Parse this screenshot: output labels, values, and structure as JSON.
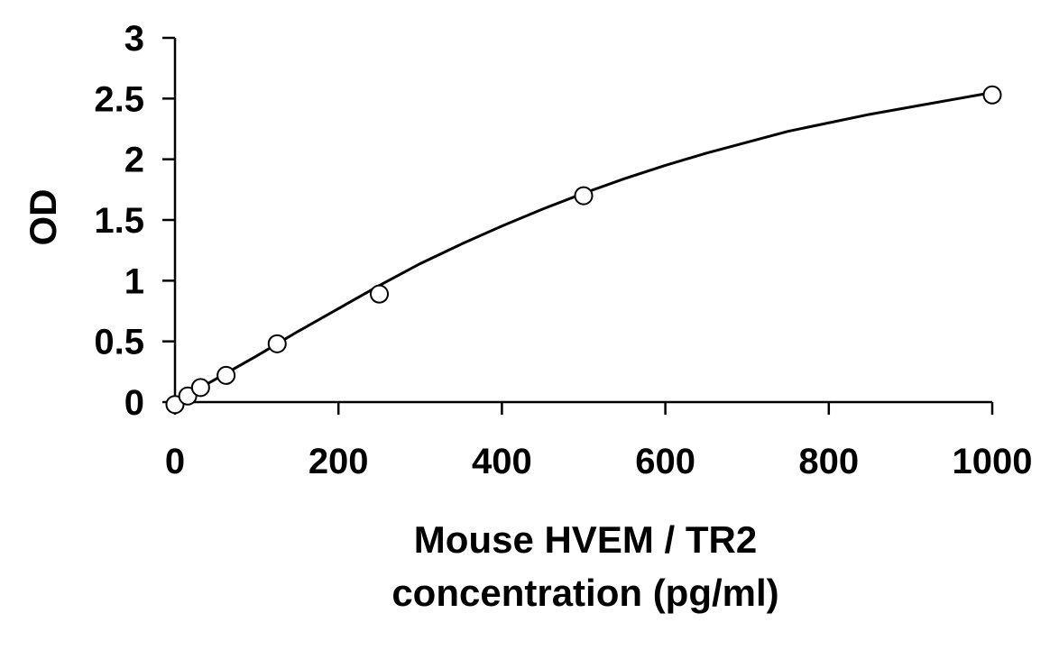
{
  "chart_data": {
    "type": "scatter",
    "title": "",
    "xlabel_lines": [
      "Mouse HVEM / TR2",
      "concentration (pg/ml)"
    ],
    "ylabel": "OD",
    "xlim": [
      0,
      1000
    ],
    "ylim": [
      0,
      3
    ],
    "xticks": [
      0,
      200,
      400,
      600,
      800,
      1000
    ],
    "yticks": [
      0,
      0.5,
      1,
      1.5,
      2,
      2.5,
      3
    ],
    "ytick_labels": [
      "0",
      "0.5",
      "1",
      "1.5",
      "2",
      "2.5",
      "3"
    ],
    "xtick_labels": [
      "0",
      "200",
      "400",
      "600",
      "800",
      "1000"
    ],
    "grid": false,
    "legend": "none",
    "series": [
      {
        "marker": "open-circle",
        "x": [
          0,
          15.6,
          31.3,
          62.5,
          125,
          250,
          500,
          1000
        ],
        "y": [
          -0.02,
          0.05,
          0.12,
          0.22,
          0.48,
          0.89,
          1.7,
          2.53
        ]
      }
    ],
    "fit_curve": {
      "style": "solid",
      "color": "#000000",
      "x": [
        0,
        50,
        100,
        150,
        200,
        250,
        300,
        350,
        400,
        450,
        500,
        550,
        600,
        650,
        700,
        750,
        800,
        850,
        900,
        950,
        1000
      ],
      "y": [
        0.0,
        0.19,
        0.38,
        0.58,
        0.77,
        0.96,
        1.14,
        1.3,
        1.45,
        1.59,
        1.72,
        1.84,
        1.95,
        2.05,
        2.14,
        2.23,
        2.3,
        2.37,
        2.43,
        2.49,
        2.55
      ]
    }
  }
}
